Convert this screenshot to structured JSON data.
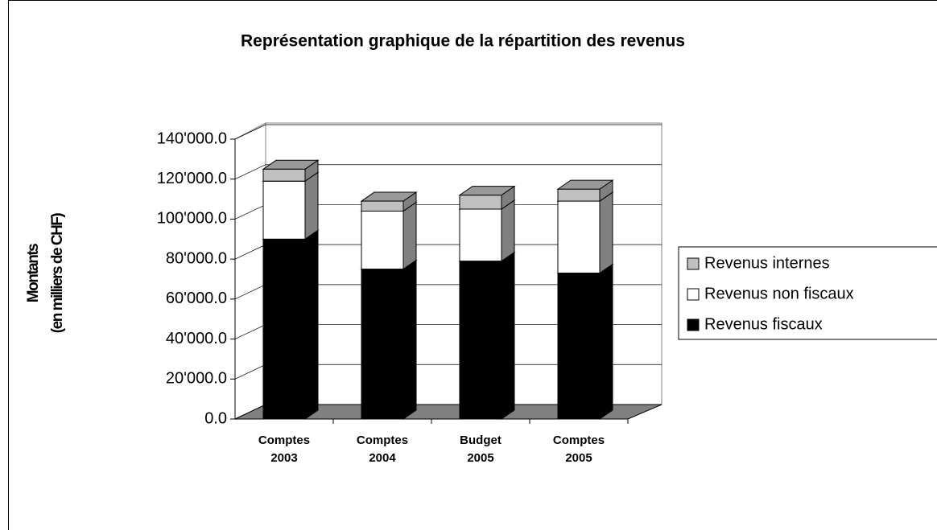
{
  "chart_data": {
    "type": "bar3d_stacked",
    "title": "Représentation graphique de la répartition des revenus",
    "y_label": [
      "Montants",
      "(en milliers de CHF)"
    ],
    "categories": [
      "Comptes 2003",
      "Comptes 2004",
      "Budget 2005",
      "Comptes 2005"
    ],
    "series": [
      {
        "name": "Revenus fiscaux",
        "color": "#000000",
        "side": "#000000",
        "values": [
          90000,
          75000,
          79000,
          73000
        ]
      },
      {
        "name": "Revenus non fiscaux",
        "color": "#ffffff",
        "side": "#808080",
        "values": [
          29000,
          29000,
          26000,
          36000
        ]
      },
      {
        "name": "Revenus internes",
        "color": "#c0c0c0",
        "side": "#808080",
        "values": [
          6000,
          5000,
          7000,
          6000
        ]
      }
    ],
    "ylim": [
      0,
      140000
    ],
    "yticks": [
      {
        "value": 0,
        "label": "0.0"
      },
      {
        "value": 20000,
        "label": "20'000.0"
      },
      {
        "value": 40000,
        "label": "40'000.0"
      },
      {
        "value": 60000,
        "label": "60'000.0"
      },
      {
        "value": 80000,
        "label": "80'000.0"
      },
      {
        "value": 100000,
        "label": "100'000.0"
      },
      {
        "value": 120000,
        "label": "120'000.0"
      },
      {
        "value": 140000,
        "label": "140'000.0"
      }
    ],
    "grid": true,
    "legend": "right"
  }
}
